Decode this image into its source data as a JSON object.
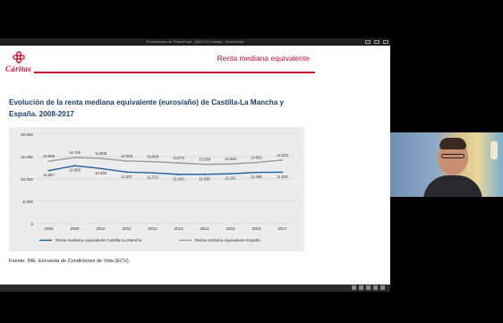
{
  "window": {
    "title": "Presentación de PowerPoint - [2022-03 Cáritas] - PowerPoint"
  },
  "slide": {
    "logo_text": "Cáritas",
    "header_title": "Renta mediana equivalente",
    "chart_title": "Evolución de la renta mediana equivalente (euros/año) de Castilla-La Mancha y España. 2008-2017",
    "source": "Fuente: INE. Encuesta de Condiciones de Vida (ECV)."
  },
  "colors": {
    "brand_red": "#c8102e",
    "title_blue": "#1b3f6e",
    "series_clm": "#1f5f9e",
    "series_es": "#9a9a9a"
  },
  "chart_data": {
    "type": "line",
    "title": "",
    "xlabel": "",
    "ylabel": "",
    "categories": [
      "2008",
      "2009",
      "2010",
      "2011",
      "2012",
      "2013",
      "2014",
      "2015",
      "2016",
      "2017"
    ],
    "yticks": [
      "0",
      "5.000",
      "10.000",
      "15.000",
      "20.000"
    ],
    "ylim": [
      0,
      20000
    ],
    "grid": true,
    "legend_position": "bottom",
    "series": [
      {
        "name": "Renta mediana equivalente Castilla La Mancha",
        "values": [
          11857,
          12965,
          12329,
          11537,
          11372,
          11023,
          11035,
          11161,
          11458,
          11516
        ],
        "labels": [
          "11.857",
          "12.965",
          "12.329",
          "11.537",
          "11.372",
          "11.023",
          "11.035",
          "11.161",
          "11.458",
          "11.516"
        ]
      },
      {
        "name": "Renta mediana equivalente España",
        "values": [
          13996,
          14795,
          14605,
          14009,
          13868,
          13574,
          13269,
          13352,
          13681,
          14203
        ],
        "labels": [
          "13.996",
          "14.795",
          "14.605",
          "14.009",
          "13.868",
          "13.574",
          "13.269",
          "13.352",
          "13.681",
          "14.203"
        ]
      }
    ]
  }
}
